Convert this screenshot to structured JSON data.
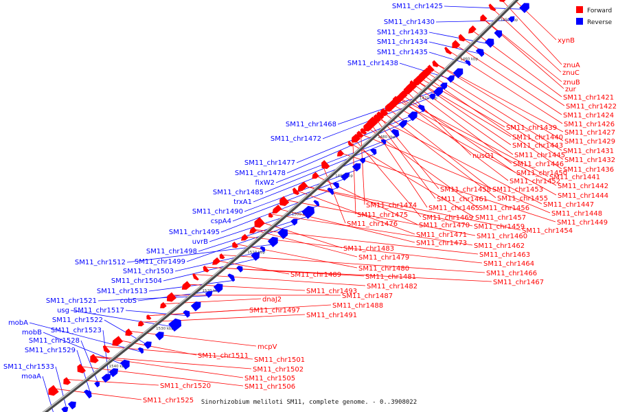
{
  "caption": "Sinorhizobium meliloti SM11, complete genome. - 0..3908022",
  "legend": [
    {
      "label": "Forward",
      "color": "#ff0000"
    },
    {
      "label": "Reverse",
      "color": "#0000ff"
    }
  ],
  "colors": {
    "forward": "#ff0000",
    "reverse": "#0000ff",
    "backbone": "#7a7a7a"
  },
  "ticks": [
    "1450 kbp",
    "1460 kbp",
    "1470 kbp",
    "1480 kbp",
    "1490 kbp",
    "1500 kbp",
    "1510 kbp",
    "1520 kbp",
    "1530 kbp",
    "1540 kbp"
  ],
  "forward_labels": [
    "xynB",
    "znuA",
    "znuC",
    "znuB",
    "zur",
    "SM11_chr1421",
    "SM11_chr1422",
    "SM11_chr1424",
    "SM11_chr1426",
    "SM11_chr1427",
    "SM11_chr1429",
    "SM11_chr1431",
    "SM11_chr1432",
    "SM11_chr1436",
    "SM11_chr1439",
    "SM11_chr1440",
    "SM11_chr1443",
    "SM11_chr1445",
    "SM11_chr1446",
    "nusG1",
    "SM11_chr1450",
    "SM11_chr1441",
    "SM11_chr1452",
    "SM11_chr1442",
    "SM11_chr1444",
    "SM11_chr1453",
    "SM11_chr1455",
    "SM11_chr1458",
    "SM11_chr1461",
    "SM11_chr1447",
    "SM11_chr1465",
    "SM11_chr1456",
    "SM11_chr1474",
    "SM11_chr1448",
    "SM11_chr1475",
    "SM11_chr1469",
    "SM11_chr1457",
    "SM11_chr1449",
    "SM11_chr1476",
    "SM11_chr1470",
    "SM11_chr1459",
    "SM11_chr1454",
    "SM11_chr1471",
    "SM11_chr1460",
    "SM11_chr1473",
    "SM11_chr1462",
    "SM11_chr1483",
    "SM11_chr1463",
    "SM11_chr1479",
    "SM11_chr1464",
    "SM11_chr1480",
    "SM11_chr1466",
    "SM11_chr1489",
    "SM11_chr1481",
    "SM11_chr1467",
    "SM11_chr1482",
    "SM11_chr1493",
    "SM11_chr1487",
    "dnaJ2",
    "SM11_chr1488",
    "SM11_chr1497",
    "SM11_chr1491",
    "mcpV",
    "SM11_chr1511",
    "SM11_chr1501",
    "SM11_chr1502",
    "SM11_chr1505",
    "SM11_chr1506",
    "SM11_chr1520",
    "SM11_chr1525"
  ],
  "reverse_labels": [
    "SM11_chr1425",
    "SM11_chr1430",
    "SM11_chr1433",
    "SM11_chr1434",
    "SM11_chr1435",
    "SM11_chr1438",
    "SM11_chr1468",
    "SM11_chr1472",
    "SM11_chr1477",
    "SM11_chr1478",
    "fixW2",
    "SM11_chr1485",
    "trxA1",
    "SM11_chr1490",
    "cspA4",
    "SM11_chr1495",
    "uvrB",
    "SM11_chr1498",
    "SM11_chr1499",
    "SM11_chr1512",
    "SM11_chr1503",
    "SM11_chr1504",
    "SM11_chr1513",
    "cobS",
    "SM11_chr1521",
    "SM11_chr1517",
    "usg",
    "SM11_chr1522",
    "mobA",
    "mobB",
    "SM11_chr1523",
    "SM11_chr1528",
    "SM11_chr1529",
    "SM11_chr1533",
    "moaA"
  ]
}
